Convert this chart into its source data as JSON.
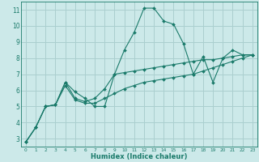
{
  "xlabel": "Humidex (Indice chaleur)",
  "ylabel": "",
  "xlim": [
    -0.5,
    23.5
  ],
  "ylim": [
    2.5,
    11.5
  ],
  "yticks": [
    3,
    4,
    5,
    6,
    7,
    8,
    9,
    10,
    11
  ],
  "xticks": [
    0,
    1,
    2,
    3,
    4,
    5,
    6,
    7,
    8,
    9,
    10,
    11,
    12,
    13,
    14,
    15,
    16,
    17,
    18,
    19,
    20,
    21,
    22,
    23
  ],
  "bg_color": "#cce9e9",
  "grid_color": "#aacfcf",
  "line_color": "#1a7a6a",
  "series": [
    {
      "x": [
        0,
        1,
        2,
        3,
        4,
        5,
        6,
        7,
        8,
        9,
        10,
        11,
        12,
        13,
        14,
        15,
        16,
        17,
        18,
        19,
        20,
        21,
        22,
        23
      ],
      "y": [
        2.8,
        3.7,
        5.0,
        5.1,
        6.5,
        5.9,
        5.5,
        5.0,
        5.0,
        7.0,
        8.5,
        9.6,
        11.1,
        11.1,
        10.3,
        10.1,
        8.9,
        7.0,
        8.1,
        6.5,
        8.0,
        8.5,
        8.2,
        8.2
      ]
    },
    {
      "x": [
        0,
        1,
        2,
        3,
        4,
        5,
        6,
        7,
        8,
        9,
        10,
        11,
        12,
        13,
        14,
        15,
        16,
        17,
        18,
        19,
        20,
        21,
        22,
        23
      ],
      "y": [
        2.8,
        3.7,
        5.0,
        5.1,
        6.5,
        5.5,
        5.3,
        5.5,
        6.1,
        7.0,
        7.1,
        7.2,
        7.3,
        7.4,
        7.5,
        7.6,
        7.7,
        7.8,
        7.9,
        7.9,
        8.0,
        8.1,
        8.2,
        8.2
      ]
    },
    {
      "x": [
        0,
        1,
        2,
        3,
        4,
        5,
        6,
        7,
        8,
        9,
        10,
        11,
        12,
        13,
        14,
        15,
        16,
        17,
        18,
        19,
        20,
        21,
        22,
        23
      ],
      "y": [
        2.8,
        3.7,
        5.0,
        5.1,
        6.3,
        5.4,
        5.2,
        5.2,
        5.5,
        5.8,
        6.1,
        6.3,
        6.5,
        6.6,
        6.7,
        6.8,
        6.9,
        7.0,
        7.2,
        7.4,
        7.6,
        7.8,
        8.0,
        8.2
      ]
    }
  ]
}
